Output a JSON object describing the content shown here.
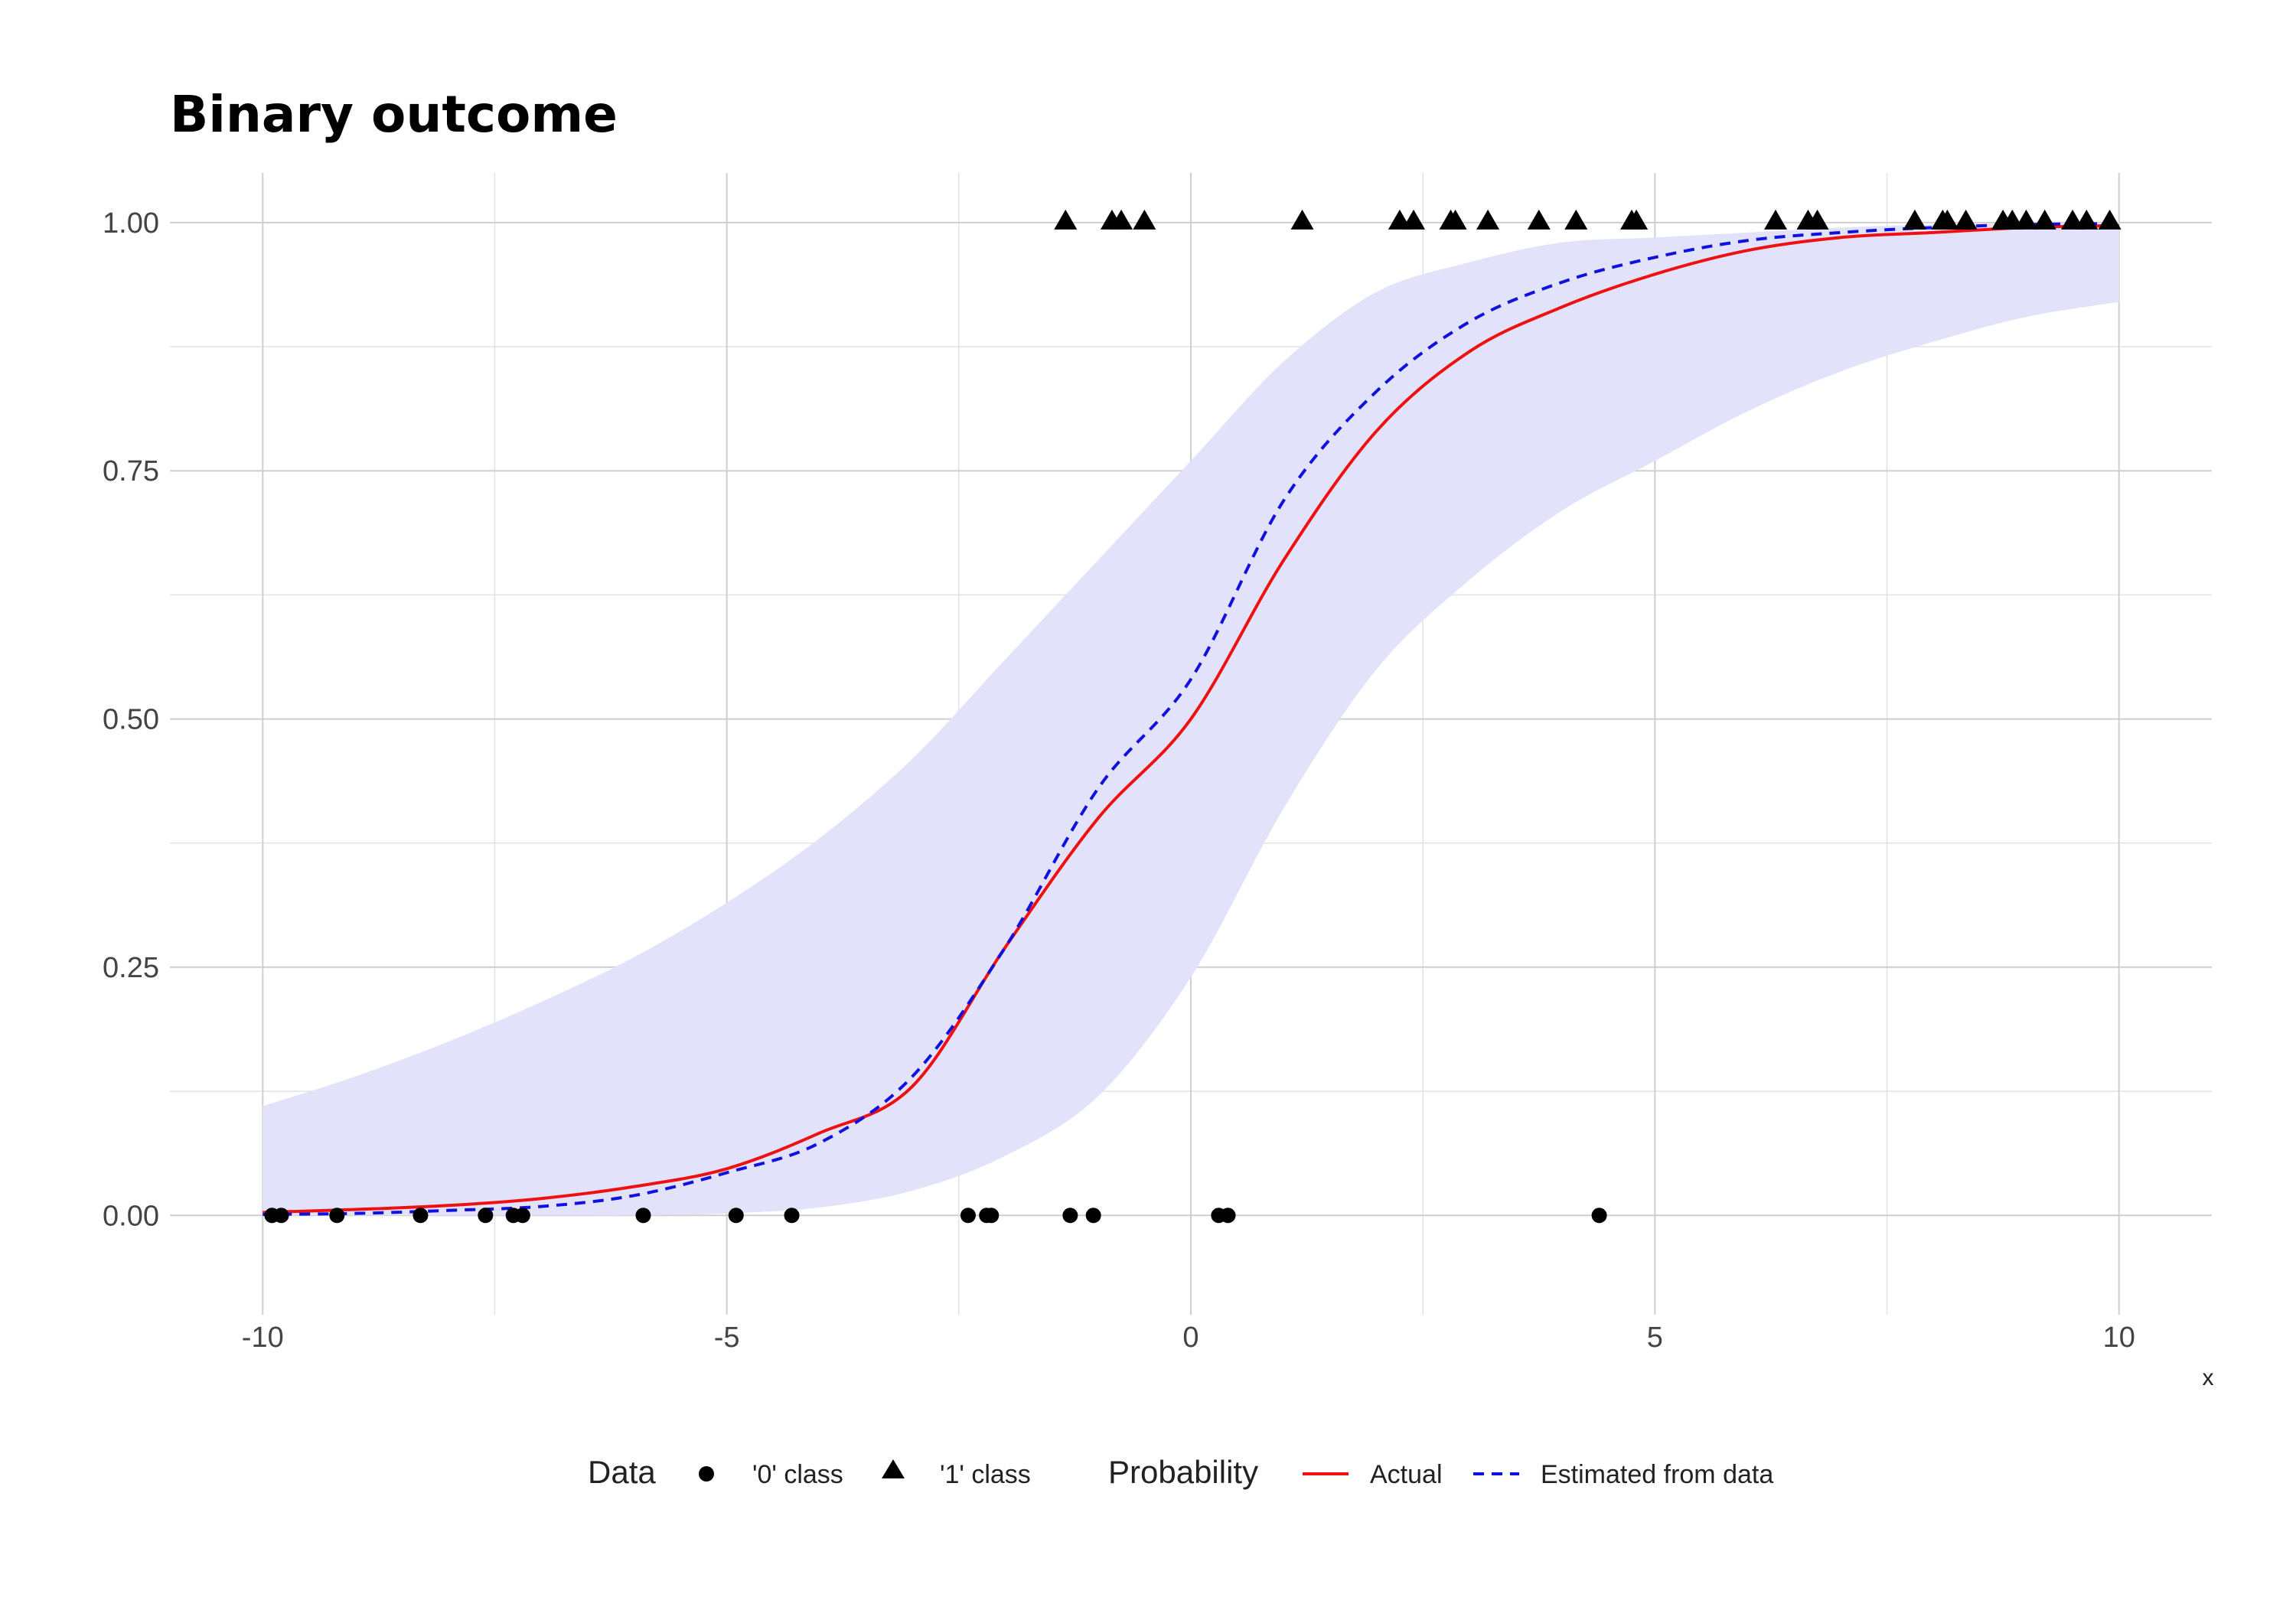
{
  "chart_data": {
    "type": "line",
    "title": "Binary outcome",
    "xlabel": "x",
    "ylabel": "",
    "xlim": [
      -11,
      11
    ],
    "ylim": [
      -0.1,
      1.05
    ],
    "x_ticks": [
      -10,
      -5,
      0,
      5,
      10
    ],
    "x_tick_labels": [
      "-10",
      "-5",
      "0",
      "5",
      "10"
    ],
    "y_ticks": [
      0,
      0.25,
      0.5,
      0.75,
      1
    ],
    "y_tick_labels": [
      "0.00",
      "0.25",
      "0.50",
      "0.75",
      "1.00"
    ],
    "grid": true,
    "colors": {
      "actual": "#ee1111",
      "estimated": "#1111dd",
      "band": "#e2e2fa",
      "points": "#000000"
    },
    "series": [
      {
        "name": "Actual",
        "style": "solid",
        "x": [
          -10,
          -9,
          -8,
          -7,
          -6,
          -5,
          -4,
          -3,
          -2,
          -1,
          0,
          1,
          2,
          3,
          4,
          5,
          6,
          7,
          8,
          9,
          10
        ],
        "y": [
          0.003,
          0.006,
          0.01,
          0.017,
          0.029,
          0.047,
          0.083,
          0.13,
          0.27,
          0.4,
          0.5,
          0.66,
          0.79,
          0.87,
          0.915,
          0.948,
          0.972,
          0.985,
          0.99,
          0.995,
          0.997
        ]
      },
      {
        "name": "Estimated from data",
        "style": "dashed",
        "x": [
          -10,
          -9,
          -8,
          -7,
          -6,
          -5,
          -4,
          -3,
          -2,
          -1,
          0,
          1,
          2,
          3,
          4,
          5,
          6,
          7,
          8,
          9,
          10
        ],
        "y": [
          0.001,
          0.002,
          0.005,
          0.009,
          0.02,
          0.043,
          0.073,
          0.14,
          0.27,
          0.43,
          0.54,
          0.72,
          0.83,
          0.9,
          0.94,
          0.965,
          0.982,
          0.99,
          0.995,
          0.998,
          0.999
        ]
      }
    ],
    "band": {
      "x": [
        -10,
        -9,
        -8,
        -7,
        -6,
        -5,
        -4,
        -3,
        -2,
        -1,
        0,
        1,
        2,
        3,
        4,
        5,
        6,
        7,
        8,
        9,
        10
      ],
      "lower": [
        0.0,
        0.0,
        0.0,
        0.0,
        0.0,
        0.002,
        0.008,
        0.025,
        0.06,
        0.12,
        0.24,
        0.41,
        0.55,
        0.64,
        0.71,
        0.76,
        0.81,
        0.85,
        0.88,
        0.905,
        0.92
      ],
      "upper": [
        0.11,
        0.14,
        0.175,
        0.215,
        0.26,
        0.315,
        0.38,
        0.46,
        0.56,
        0.66,
        0.76,
        0.86,
        0.93,
        0.96,
        0.98,
        0.985,
        0.99,
        0.995,
        0.998,
        0.999,
        1.0
      ]
    },
    "points_class0": [
      -9.9,
      -9.8,
      -9.2,
      -8.3,
      -7.6,
      -7.3,
      -7.2,
      -5.9,
      -4.9,
      -4.3,
      -2.4,
      -2.2,
      -2.15,
      -1.3,
      -1.05,
      0.3,
      0.4,
      4.4
    ],
    "points_class1": [
      -1.35,
      -0.85,
      -0.75,
      -0.5,
      1.2,
      2.25,
      2.4,
      2.8,
      2.85,
      3.2,
      3.75,
      4.15,
      4.75,
      4.8,
      6.3,
      6.65,
      6.75,
      7.8,
      8.1,
      8.15,
      8.35,
      8.75,
      8.85,
      9.0,
      9.2,
      9.5,
      9.65,
      9.9
    ],
    "legend": {
      "position": "bottom",
      "data_title": "Data",
      "class0_label": "'0' class",
      "class1_label": "'1' class",
      "probability_title": "Probability",
      "actual_label": "Actual",
      "estimated_label": "Estimated from data"
    }
  }
}
